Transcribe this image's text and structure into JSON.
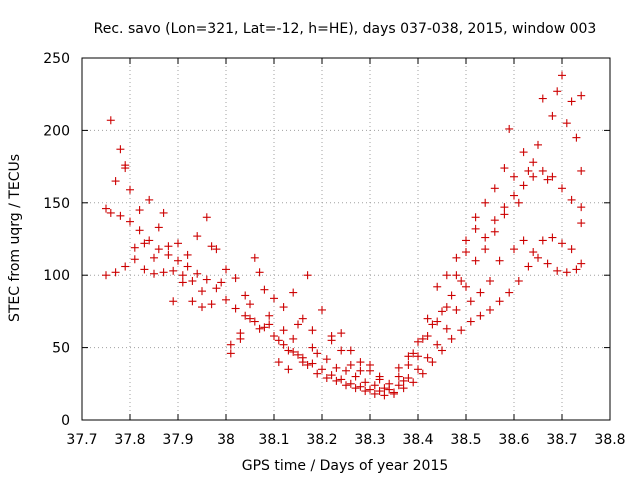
{
  "chart_data": {
    "type": "scatter",
    "title": "Rec. savo (Lon=321, Lat=-12, h=HE), days 037-038, 2015, window 003",
    "xlabel": "GPS time / Days of year 2015",
    "ylabel": "STEC from uqrg / TECUs",
    "xlim": [
      37.7,
      38.8
    ],
    "ylim": [
      0,
      250
    ],
    "x_ticks": [
      "37.7",
      "37.8",
      "37.9",
      "38",
      "38.1",
      "38.2",
      "38.3",
      "38.4",
      "38.5",
      "38.6",
      "38.7",
      "38.8"
    ],
    "y_ticks": [
      "0",
      "50",
      "100",
      "150",
      "200",
      "250"
    ],
    "grid": true,
    "marker": "+",
    "marker_color": "#cc0000",
    "series": [
      {
        "points": [
          [
            37.75,
            146
          ],
          [
            37.76,
            143
          ],
          [
            37.78,
            141
          ],
          [
            37.8,
            137
          ],
          [
            37.82,
            131
          ],
          [
            37.84,
            124
          ],
          [
            37.86,
            118
          ],
          [
            37.88,
            114
          ],
          [
            37.9,
            110
          ],
          [
            37.92,
            106
          ],
          [
            37.94,
            101
          ],
          [
            37.96,
            97
          ],
          [
            37.98,
            91
          ],
          [
            38.0,
            83
          ],
          [
            38.02,
            77
          ],
          [
            38.04,
            72
          ],
          [
            38.06,
            68
          ],
          [
            38.08,
            64
          ],
          [
            38.1,
            58
          ],
          [
            38.12,
            52
          ],
          [
            38.14,
            47
          ],
          [
            38.16,
            43
          ],
          [
            38.18,
            39
          ],
          [
            38.2,
            35
          ],
          [
            38.22,
            31
          ],
          [
            38.24,
            28
          ],
          [
            38.26,
            25
          ],
          [
            38.28,
            23
          ],
          [
            38.3,
            21
          ],
          [
            38.32,
            20
          ],
          [
            38.34,
            21
          ],
          [
            38.36,
            24
          ],
          [
            38.38,
            29
          ],
          [
            38.4,
            35
          ],
          [
            38.42,
            43
          ],
          [
            38.44,
            52
          ],
          [
            38.46,
            63
          ],
          [
            38.48,
            76
          ],
          [
            38.5,
            92
          ],
          [
            38.52,
            110
          ],
          [
            38.54,
            126
          ],
          [
            38.56,
            138
          ],
          [
            38.58,
            147
          ],
          [
            38.6,
            155
          ],
          [
            38.62,
            162
          ],
          [
            38.64,
            168
          ],
          [
            38.66,
            172
          ],
          [
            38.68,
            168
          ],
          [
            38.7,
            160
          ],
          [
            38.72,
            152
          ],
          [
            38.74,
            147
          ],
          [
            37.75,
            100
          ],
          [
            37.77,
            102
          ],
          [
            37.79,
            106
          ],
          [
            37.81,
            111
          ],
          [
            37.83,
            104
          ],
          [
            37.85,
            101
          ],
          [
            37.87,
            102
          ],
          [
            37.89,
            103
          ],
          [
            37.91,
            100
          ],
          [
            37.93,
            96
          ],
          [
            37.95,
            89
          ],
          [
            37.97,
            80
          ],
          [
            37.99,
            95
          ],
          [
            38.01,
            52
          ],
          [
            38.03,
            60
          ],
          [
            38.05,
            70
          ],
          [
            38.07,
            63
          ],
          [
            38.09,
            66
          ],
          [
            38.11,
            40
          ],
          [
            38.13,
            35
          ],
          [
            38.15,
            45
          ],
          [
            38.17,
            38
          ],
          [
            38.19,
            32
          ],
          [
            38.21,
            29
          ],
          [
            38.23,
            27
          ],
          [
            38.25,
            24
          ],
          [
            38.27,
            22
          ],
          [
            38.29,
            20
          ],
          [
            38.31,
            18
          ],
          [
            38.33,
            17
          ],
          [
            38.35,
            19
          ],
          [
            38.37,
            22
          ],
          [
            38.39,
            26
          ],
          [
            38.41,
            32
          ],
          [
            38.43,
            40
          ],
          [
            38.45,
            48
          ],
          [
            38.47,
            56
          ],
          [
            38.49,
            62
          ],
          [
            38.51,
            68
          ],
          [
            38.53,
            72
          ],
          [
            38.55,
            76
          ],
          [
            38.57,
            82
          ],
          [
            38.59,
            88
          ],
          [
            38.61,
            96
          ],
          [
            38.63,
            106
          ],
          [
            38.65,
            112
          ],
          [
            38.67,
            108
          ],
          [
            38.69,
            103
          ],
          [
            38.71,
            102
          ],
          [
            38.73,
            104
          ],
          [
            37.76,
            207
          ],
          [
            37.78,
            187
          ],
          [
            37.79,
            176
          ],
          [
            37.8,
            159
          ],
          [
            37.82,
            145
          ],
          [
            37.84,
            152
          ],
          [
            37.86,
            133
          ],
          [
            37.88,
            120
          ],
          [
            37.9,
            122
          ],
          [
            37.92,
            114
          ],
          [
            37.94,
            127
          ],
          [
            37.96,
            140
          ],
          [
            37.98,
            118
          ],
          [
            38.0,
            104
          ],
          [
            38.02,
            98
          ],
          [
            38.04,
            86
          ],
          [
            38.06,
            112
          ],
          [
            38.08,
            90
          ],
          [
            38.1,
            84
          ],
          [
            38.12,
            78
          ],
          [
            38.14,
            88
          ],
          [
            38.16,
            70
          ],
          [
            38.18,
            62
          ],
          [
            38.2,
            76
          ],
          [
            38.22,
            55
          ],
          [
            38.24,
            60
          ],
          [
            38.26,
            48
          ],
          [
            38.28,
            40
          ],
          [
            38.3,
            34
          ],
          [
            38.32,
            28
          ],
          [
            38.34,
            25
          ],
          [
            38.36,
            30
          ],
          [
            38.38,
            38
          ],
          [
            38.4,
            44
          ],
          [
            38.42,
            58
          ],
          [
            38.44,
            68
          ],
          [
            38.46,
            78
          ],
          [
            38.48,
            100
          ],
          [
            38.5,
            116
          ],
          [
            38.52,
            132
          ],
          [
            38.54,
            150
          ],
          [
            38.56,
            160
          ],
          [
            38.58,
            174
          ],
          [
            38.6,
            168
          ],
          [
            38.62,
            185
          ],
          [
            38.64,
            178
          ],
          [
            38.66,
            222
          ],
          [
            38.68,
            210
          ],
          [
            38.7,
            238
          ],
          [
            38.72,
            220
          ],
          [
            38.74,
            224
          ],
          [
            37.77,
            165
          ],
          [
            37.79,
            174
          ],
          [
            37.81,
            119
          ],
          [
            37.83,
            122
          ],
          [
            37.85,
            112
          ],
          [
            37.87,
            143
          ],
          [
            37.89,
            82
          ],
          [
            37.91,
            95
          ],
          [
            37.93,
            82
          ],
          [
            37.95,
            78
          ],
          [
            37.97,
            120
          ],
          [
            38.01,
            46
          ],
          [
            38.03,
            56
          ],
          [
            38.05,
            80
          ],
          [
            38.07,
            102
          ],
          [
            38.09,
            72
          ],
          [
            38.11,
            55
          ],
          [
            38.13,
            48
          ],
          [
            38.15,
            66
          ],
          [
            38.17,
            100
          ],
          [
            38.19,
            46
          ],
          [
            38.21,
            42
          ],
          [
            38.23,
            36
          ],
          [
            38.25,
            34
          ],
          [
            38.27,
            30
          ],
          [
            38.29,
            26
          ],
          [
            38.31,
            24
          ],
          [
            38.33,
            22
          ],
          [
            38.35,
            18
          ],
          [
            38.37,
            27
          ],
          [
            38.39,
            46
          ],
          [
            38.41,
            56
          ],
          [
            38.43,
            66
          ],
          [
            38.45,
            75
          ],
          [
            38.47,
            86
          ],
          [
            38.49,
            96
          ],
          [
            38.51,
            82
          ],
          [
            38.53,
            88
          ],
          [
            38.55,
            96
          ],
          [
            38.57,
            110
          ],
          [
            38.59,
            201
          ],
          [
            38.61,
            150
          ],
          [
            38.63,
            172
          ],
          [
            38.65,
            190
          ],
          [
            38.67,
            166
          ],
          [
            38.69,
            227
          ],
          [
            38.71,
            205
          ],
          [
            38.73,
            195
          ],
          [
            38.74,
            172
          ],
          [
            38.74,
            136
          ],
          [
            38.12,
            62
          ],
          [
            38.14,
            56
          ],
          [
            38.16,
            40
          ],
          [
            38.18,
            50
          ],
          [
            38.22,
            58
          ],
          [
            38.24,
            48
          ],
          [
            38.26,
            38
          ],
          [
            38.28,
            34
          ],
          [
            38.3,
            38
          ],
          [
            38.32,
            30
          ],
          [
            38.36,
            36
          ],
          [
            38.38,
            44
          ],
          [
            38.4,
            54
          ],
          [
            38.42,
            70
          ],
          [
            38.44,
            92
          ],
          [
            38.46,
            100
          ],
          [
            38.48,
            112
          ],
          [
            38.5,
            124
          ],
          [
            38.52,
            140
          ],
          [
            38.54,
            118
          ],
          [
            38.56,
            130
          ],
          [
            38.58,
            142
          ],
          [
            38.6,
            118
          ],
          [
            38.62,
            124
          ],
          [
            38.64,
            116
          ],
          [
            38.66,
            124
          ],
          [
            38.68,
            126
          ],
          [
            38.7,
            122
          ],
          [
            38.72,
            118
          ],
          [
            38.74,
            108
          ]
        ]
      }
    ]
  }
}
